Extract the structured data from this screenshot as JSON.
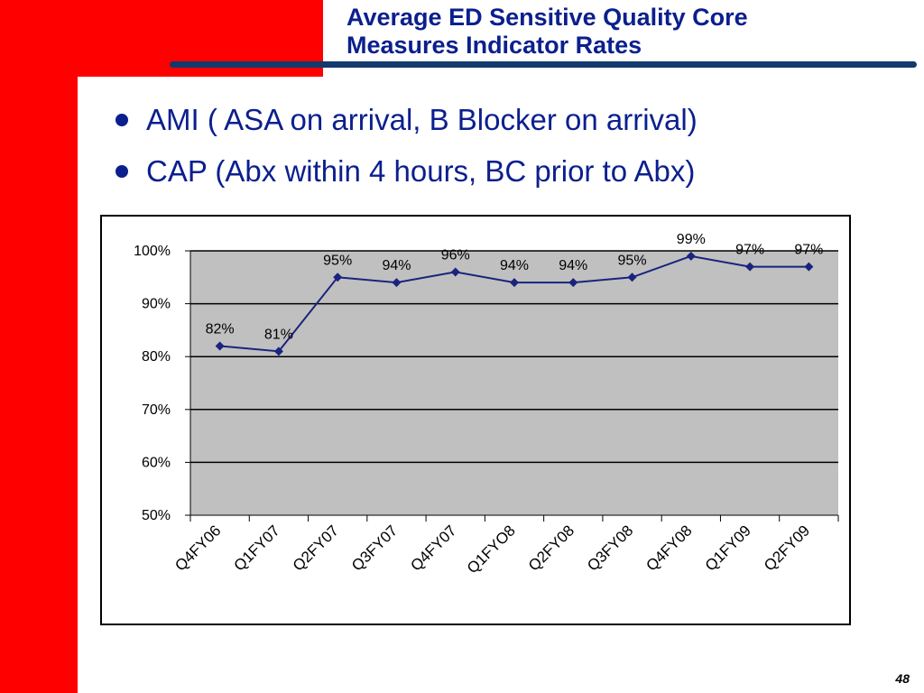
{
  "slide": {
    "title_line1": "Average ED Sensitive Quality Core",
    "title_line2": "Measures Indicator Rates",
    "bullets": [
      "AMI ( ASA on arrival, B Blocker on arrival)",
      "CAP (Abx within 4 hours, BC prior to Abx)"
    ],
    "page_number": "48",
    "colors": {
      "accent_red": "#ff0000",
      "title_blue": "#0b1f8e",
      "series_blue": "#1a237e",
      "plot_bg": "#c0c0c0"
    }
  },
  "chart_data": {
    "type": "line",
    "title": "",
    "xlabel": "",
    "ylabel": "",
    "categories": [
      "Q4FY06",
      "Q1FY07",
      "Q2FY07",
      "Q3FY07",
      "Q4FY07",
      "Q1FYO8",
      "Q2FY08",
      "Q3FY08",
      "Q4FY08",
      "Q1FY09",
      "Q2FY09"
    ],
    "series": [
      {
        "values": [
          82,
          81,
          95,
          94,
          96,
          94,
          94,
          95,
          99,
          97,
          97
        ],
        "labels": [
          "82%",
          "81%",
          "95%",
          "94%",
          "96%",
          "94%",
          "94%",
          "95%",
          "99%",
          "97%",
          "97%"
        ],
        "marker": "diamond"
      }
    ],
    "ylim": [
      50,
      100
    ],
    "yticks": [
      50,
      60,
      70,
      80,
      90,
      100
    ],
    "ytick_labels": [
      "50%",
      "60%",
      "70%",
      "80%",
      "90%",
      "100%"
    ],
    "grid": true,
    "legend": "none"
  }
}
